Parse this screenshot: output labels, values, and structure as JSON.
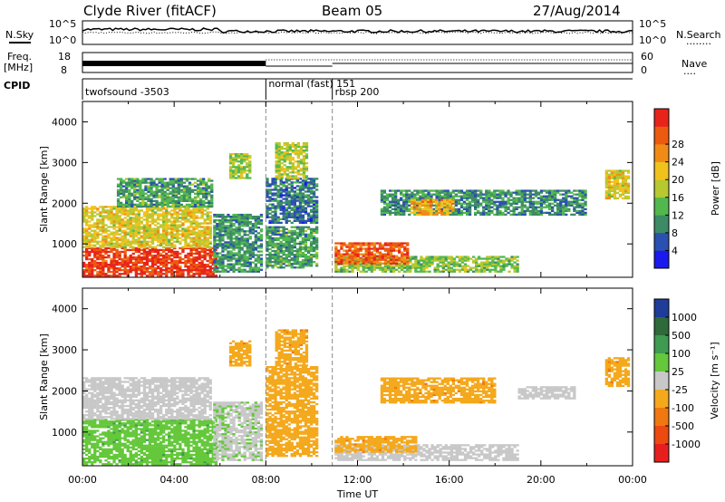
{
  "header": {
    "station": "Clyde River (fitACF)",
    "beam": "Beam 05",
    "date": "27/Aug/2014"
  },
  "side_labels": {
    "nsky": "N.Sky",
    "freq": "Freq.",
    "mhz": "[MHz]",
    "cpid": "CPID",
    "nsearch": "N.Search",
    "nave": "Nave",
    "nsearch_dots": "........",
    "nave_dots": "...."
  },
  "tick_labels": {
    "nsky_top": "10^5",
    "nsky_bottom": "10^0",
    "nsearch_top": "10^5",
    "nsearch_bottom": "10^0",
    "freq_top": "18",
    "freq_bottom": "8",
    "nave_top": "60",
    "nave_bottom": "0"
  },
  "cpid_segments": [
    {
      "label": "twofsound -3503",
      "start_hour": 0
    },
    {
      "label": "normal (fast) 151",
      "start_hour": 8.0
    },
    {
      "label": "rbsp 200",
      "start_hour": 10.9
    }
  ],
  "chart_data": [
    {
      "type": "heatmap",
      "name": "power",
      "ylabel": "Slant Range [km]",
      "xlabel": "",
      "ylim": [
        180,
        4500
      ],
      "yticks": [
        1000,
        2000,
        3000,
        4000
      ],
      "x_range_hours": [
        0,
        24
      ],
      "xtick_labels": [
        "00:00",
        "04:00",
        "08:00",
        "12:00",
        "16:00",
        "20:00",
        "00:00"
      ],
      "colorbar": {
        "label": "Power [dB]",
        "ticks": [
          4,
          8,
          12,
          16,
          20,
          24,
          28
        ],
        "range": [
          0,
          30
        ],
        "colors": [
          "#1a1aee",
          "#2a50b0",
          "#3c8a66",
          "#52b84e",
          "#b7c830",
          "#f1c21c",
          "#f08c16",
          "#ec5a10",
          "#e8241a"
        ]
      },
      "regions": [
        {
          "t0": 0.0,
          "t1": 5.8,
          "r0": 200,
          "r1": 900,
          "value": 27
        },
        {
          "t0": 0.0,
          "t1": 5.6,
          "r0": 900,
          "r1": 1900,
          "value": 17
        },
        {
          "t0": 1.5,
          "t1": 5.6,
          "r0": 1900,
          "r1": 2600,
          "value": 10
        },
        {
          "t0": 5.7,
          "t1": 7.8,
          "r0": 300,
          "r1": 1700,
          "value": 9
        },
        {
          "t0": 6.4,
          "t1": 7.3,
          "r0": 2600,
          "r1": 3200,
          "value": 14
        },
        {
          "t0": 8.0,
          "t1": 10.2,
          "r0": 400,
          "r1": 1400,
          "value": 10
        },
        {
          "t0": 8.0,
          "t1": 10.2,
          "r0": 1500,
          "r1": 2600,
          "value": 7
        },
        {
          "t0": 8.4,
          "t1": 9.8,
          "r0": 2600,
          "r1": 3500,
          "value": 15
        },
        {
          "t0": 11.0,
          "t1": 19.0,
          "r0": 300,
          "r1": 700,
          "value": 13
        },
        {
          "t0": 11.0,
          "t1": 14.2,
          "r0": 500,
          "r1": 1000,
          "value": 25
        },
        {
          "t0": 13.0,
          "t1": 22.0,
          "r0": 1700,
          "r1": 2300,
          "value": 9
        },
        {
          "t0": 14.3,
          "t1": 16.2,
          "r0": 1700,
          "r1": 2100,
          "value": 20
        },
        {
          "t0": 22.8,
          "t1": 23.8,
          "r0": 2100,
          "r1": 2800,
          "value": 17
        }
      ]
    },
    {
      "type": "heatmap",
      "name": "velocity",
      "ylabel": "Slant Range [km]",
      "xlabel": "Time UT",
      "ylim": [
        180,
        4500
      ],
      "yticks": [
        1000,
        2000,
        3000,
        4000
      ],
      "x_range_hours": [
        0,
        24
      ],
      "xtick_labels": [
        "00:00",
        "04:00",
        "08:00",
        "12:00",
        "16:00",
        "20:00",
        "00:00"
      ],
      "colorbar": {
        "label": "Velocity [m s⁻¹]",
        "ticks": [
          "1000",
          "500",
          "100",
          "25",
          "-25",
          "-100",
          "-500",
          "-1000"
        ],
        "range": [
          -1200,
          1200
        ],
        "colors": [
          "#1f3c99",
          "#2e6a3a",
          "#3f9a52",
          "#64c83a",
          "#c8c8c8",
          "#f4a81c",
          "#f07810",
          "#ec4a10",
          "#e81e1e"
        ]
      },
      "regions": [
        {
          "t0": 0.0,
          "t1": 5.8,
          "r0": 200,
          "r1": 1300,
          "value": 300
        },
        {
          "t0": 0.0,
          "t1": 5.6,
          "r0": 1300,
          "r1": 2300,
          "value": 0
        },
        {
          "t0": 5.7,
          "t1": 7.8,
          "r0": 300,
          "r1": 1700,
          "value": 80
        },
        {
          "t0": 6.4,
          "t1": 7.3,
          "r0": 2600,
          "r1": 3200,
          "value": -300
        },
        {
          "t0": 8.0,
          "t1": 10.2,
          "r0": 400,
          "r1": 2600,
          "value": -250
        },
        {
          "t0": 8.4,
          "t1": 9.8,
          "r0": 2600,
          "r1": 3500,
          "value": -300
        },
        {
          "t0": 11.0,
          "t1": 19.0,
          "r0": 300,
          "r1": 700,
          "value": 0
        },
        {
          "t0": 11.0,
          "t1": 14.5,
          "r0": 500,
          "r1": 900,
          "value": -300
        },
        {
          "t0": 13.0,
          "t1": 18.0,
          "r0": 1700,
          "r1": 2300,
          "value": -300
        },
        {
          "t0": 19.0,
          "t1": 21.5,
          "r0": 1800,
          "r1": 2100,
          "value": 0
        },
        {
          "t0": 22.8,
          "t1": 23.8,
          "r0": 2100,
          "r1": 2800,
          "value": -300
        }
      ]
    }
  ]
}
